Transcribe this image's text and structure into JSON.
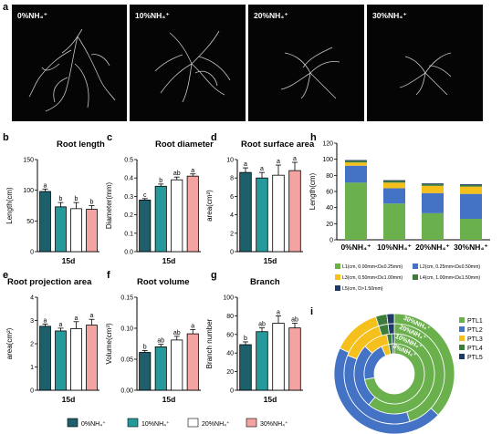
{
  "panel_letters": {
    "a": "a",
    "b": "b",
    "c": "c",
    "d": "d",
    "e": "e",
    "f": "f",
    "g": "g",
    "h": "h",
    "i": "i"
  },
  "photos": {
    "labels": [
      "0%NH₄⁺",
      "10%NH₄⁺",
      "20%NH₄⁺",
      "30%NH₄⁺"
    ]
  },
  "colors": {
    "nh0": "#1d5f6b",
    "nh10": "#26999a",
    "nh20": "#ffffff",
    "nh30": "#f4a3a3",
    "L1": "#6ab04c",
    "L2": "#4472c4",
    "L3": "#f5c01b",
    "L4": "#3d7d3b",
    "L5": "#203a66"
  },
  "bar_legend": [
    "0%NH₄⁺",
    "10%NH₄⁺",
    "20%NH₄⁺",
    "30%NH₄⁺"
  ],
  "chart_data": [
    {
      "id": "b",
      "type": "bar",
      "title": "Root length",
      "ylabel": "Length(cm)",
      "xlabel": "15d",
      "categories": [
        "0%NH₄⁺",
        "10%NH₄⁺",
        "20%NH₄⁺",
        "30%NH₄⁺"
      ],
      "values": [
        98,
        73,
        70,
        69
      ],
      "errors": [
        4,
        7,
        10,
        6
      ],
      "letters": [
        "a",
        "b",
        "b",
        "b"
      ],
      "ylim": [
        0,
        150
      ],
      "yticks": [
        0,
        50,
        100,
        150
      ],
      "ytick_labels": [
        "0",
        "50",
        "100",
        "150"
      ]
    },
    {
      "id": "c",
      "type": "bar",
      "title": "Root diameter",
      "ylabel": "Diameter(mm)",
      "xlabel": "15d",
      "categories": [
        "0%NH₄⁺",
        "10%NH₄⁺",
        "20%NH₄⁺",
        "30%NH₄⁺"
      ],
      "values": [
        0.28,
        0.355,
        0.39,
        0.41
      ],
      "errors": [
        0.008,
        0.012,
        0.015,
        0.012
      ],
      "letters": [
        "c",
        "b",
        "ab",
        "a"
      ],
      "ylim": [
        0,
        0.5
      ],
      "yticks": [
        0,
        0.1,
        0.2,
        0.3,
        0.4,
        0.5
      ],
      "ytick_labels": [
        "0.0",
        "0.1",
        "0.2",
        "0.3",
        "0.4",
        "0.5"
      ]
    },
    {
      "id": "d",
      "type": "bar",
      "title": "Root surface area",
      "ylabel": "area(cm²)",
      "xlabel": "15d",
      "categories": [
        "0%NH₄⁺",
        "10%NH₄⁺",
        "20%NH₄⁺",
        "30%NH₄⁺"
      ],
      "values": [
        8.6,
        8.0,
        8.3,
        8.8
      ],
      "errors": [
        0.5,
        0.6,
        1.1,
        0.9
      ],
      "letters": [
        "a",
        "a",
        "a",
        "a"
      ],
      "ylim": [
        0,
        10
      ],
      "yticks": [
        0,
        2,
        4,
        6,
        8,
        10
      ],
      "ytick_labels": [
        "0",
        "2",
        "4",
        "6",
        "8",
        "10"
      ]
    },
    {
      "id": "e",
      "type": "bar",
      "title": "Root projection area",
      "ylabel": "area(cm²)",
      "xlabel": "15d",
      "categories": [
        "0%NH₄⁺",
        "10%NH₄⁺",
        "20%NH₄⁺",
        "30%NH₄⁺"
      ],
      "values": [
        2.75,
        2.55,
        2.65,
        2.8
      ],
      "errors": [
        0.1,
        0.12,
        0.3,
        0.25
      ],
      "letters": [
        "a",
        "a",
        "a",
        "a"
      ],
      "ylim": [
        0,
        4
      ],
      "yticks": [
        0,
        1,
        2,
        3,
        4
      ],
      "ytick_labels": [
        "0",
        "1",
        "2",
        "3",
        "4"
      ]
    },
    {
      "id": "f",
      "type": "bar",
      "title": "Root volume",
      "ylabel": "Volume(cm³)",
      "xlabel": "15d",
      "categories": [
        "0%NH₄⁺",
        "10%NH₄⁺",
        "20%NH₄⁺",
        "30%NH₄⁺"
      ],
      "values": [
        0.061,
        0.07,
        0.081,
        0.091
      ],
      "errors": [
        0.003,
        0.004,
        0.006,
        0.007
      ],
      "letters": [
        "b",
        "ab",
        "ab",
        "a"
      ],
      "ylim": [
        0,
        0.15
      ],
      "yticks": [
        0,
        0.05,
        0.1,
        0.15
      ],
      "ytick_labels": [
        "0.00",
        "0.05",
        "0.10",
        "0.15"
      ]
    },
    {
      "id": "g",
      "type": "bar",
      "title": "Branch",
      "ylabel": "Branch number",
      "xlabel": "15d",
      "categories": [
        "0%NH₄⁺",
        "10%NH₄⁺",
        "20%NH₄⁺",
        "30%NH₄⁺"
      ],
      "values": [
        49,
        63,
        72,
        67
      ],
      "errors": [
        3,
        4,
        8,
        5
      ],
      "letters": [
        "b",
        "ab",
        "a",
        "ab"
      ],
      "ylim": [
        0,
        100
      ],
      "yticks": [
        0,
        20,
        40,
        60,
        80,
        100
      ],
      "ytick_labels": [
        "0",
        "20",
        "40",
        "60",
        "80",
        "100"
      ]
    },
    {
      "id": "h",
      "type": "bar",
      "stacked": true,
      "ylabel": "Length(cm)",
      "categories": [
        "0%NH₄⁺",
        "10%NH₄⁺",
        "20%NH₄⁺",
        "30%NH₄⁺"
      ],
      "ylim": [
        0,
        120
      ],
      "yticks": [
        0,
        20,
        40,
        60,
        80,
        100,
        120
      ],
      "ytick_labels": [
        "0",
        "20",
        "40",
        "60",
        "80",
        "100",
        "120"
      ],
      "series": [
        {
          "name": "L1(cm, 0.00mm<D≤0.25mm)",
          "key": "L1",
          "values": [
            71,
            45,
            33,
            26
          ]
        },
        {
          "name": "L2(cm, 0.25mm<D≤0.50mm)",
          "key": "L2",
          "values": [
            21,
            19,
            25,
            31
          ]
        },
        {
          "name": "L3(cm, 0.50mm<D≤1.00mm)",
          "key": "L3",
          "values": [
            4,
            7,
            9,
            9
          ]
        },
        {
          "name": "L4(cm, 1.00mm<D≤1.50mm)",
          "key": "L4",
          "values": [
            2,
            2,
            2,
            2
          ]
        },
        {
          "name": "L5(cm, D>1.50mm)",
          "key": "L5",
          "values": [
            1,
            1,
            1,
            1
          ]
        }
      ]
    },
    {
      "id": "i",
      "type": "pie",
      "donut": true,
      "rings": [
        "30%NH₄⁺",
        "20%NH₄⁺",
        "10%NH₄⁺",
        "0%NH₄⁺"
      ],
      "series": [
        {
          "name": "PTL1",
          "key": "L1",
          "values": [
            37,
            45,
            61,
            72
          ]
        },
        {
          "name": "PTL2",
          "key": "L2",
          "values": [
            45,
            36,
            26,
            21
          ]
        },
        {
          "name": "PTL3",
          "key": "L3",
          "values": [
            13,
            14,
            10,
            4
          ]
        },
        {
          "name": "PTL4",
          "key": "L4",
          "values": [
            3,
            3,
            2,
            2
          ]
        },
        {
          "name": "PTL5",
          "key": "L5",
          "values": [
            2,
            2,
            1,
            1
          ]
        }
      ]
    }
  ]
}
